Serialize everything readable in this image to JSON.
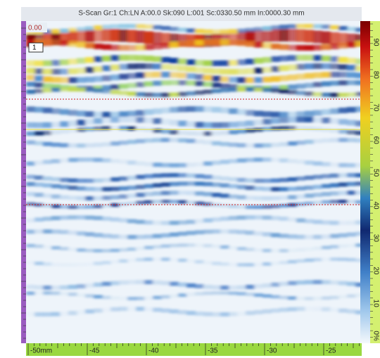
{
  "header": {
    "title": "S-Scan Gr:1 Ch:LN A:00.0 Sk:090 L:001 Sc:0330.50 mm In:0000.30 mm"
  },
  "scan": {
    "start_label": "0.00",
    "cursor_label": "1"
  },
  "x_axis": {
    "labels": [
      "-50mm",
      "-45",
      "-40",
      "-35",
      "-30",
      "-25"
    ]
  },
  "color_scale": {
    "labels": [
      "90",
      "80",
      "70",
      "60",
      "50",
      "40",
      "30",
      "20",
      "10",
      "0%"
    ]
  }
}
